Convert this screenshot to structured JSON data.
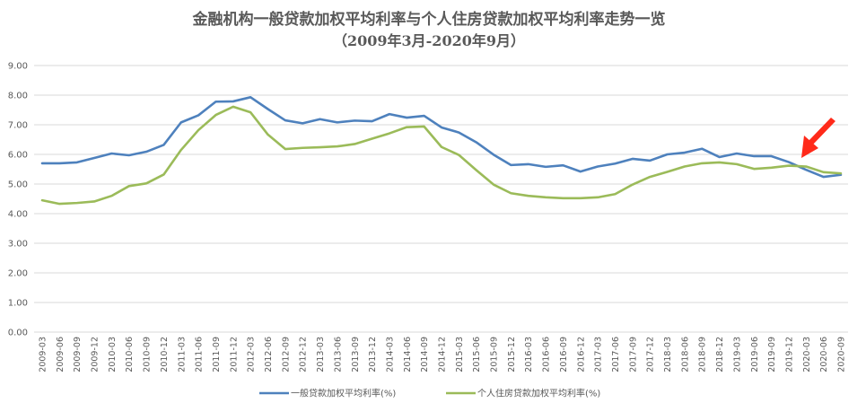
{
  "chart_data": {
    "type": "line",
    "title": "金融机构一般贷款加权平均利率与个人住房贷款加权平均利率走势一览",
    "subtitle": "（2009年3月-2020年9月）",
    "ylim": [
      0,
      9
    ],
    "yticks": [
      "0.00",
      "1.00",
      "2.00",
      "3.00",
      "4.00",
      "5.00",
      "6.00",
      "7.00",
      "8.00",
      "9.00"
    ],
    "grid": true,
    "legend": "bottom",
    "categories": [
      "2009-03",
      "2009-06",
      "2009-09",
      "2009-12",
      "2010-03",
      "2010-06",
      "2010-09",
      "2010-12",
      "2011-03",
      "2011-06",
      "2011-09",
      "2011-12",
      "2012-03",
      "2012-06",
      "2012-09",
      "2012-12",
      "2013-03",
      "2013-06",
      "2013-09",
      "2013-12",
      "2014-03",
      "2014-06",
      "2014-09",
      "2014-12",
      "2015-03",
      "2015-06",
      "2015-09",
      "2015-12",
      "2016-03",
      "2016-06",
      "2016-09",
      "2016-12",
      "2017-03",
      "2017-06",
      "2017-09",
      "2017-12",
      "2018-03",
      "2018-06",
      "2018-09",
      "2018-12",
      "2019-03",
      "2019-06",
      "2019-09",
      "2019-12",
      "2020-03",
      "2020-06",
      "2020-09"
    ],
    "series": [
      {
        "name": "一般贷款加权平均利率(%)",
        "color": "#4e81bd",
        "values": [
          5.7,
          5.7,
          5.73,
          5.88,
          6.03,
          5.97,
          6.09,
          6.32,
          7.08,
          7.32,
          7.78,
          7.79,
          7.93,
          7.53,
          7.15,
          7.05,
          7.19,
          7.08,
          7.14,
          7.12,
          7.36,
          7.24,
          7.3,
          6.91,
          6.74,
          6.41,
          5.99,
          5.64,
          5.67,
          5.58,
          5.63,
          5.42,
          5.59,
          5.69,
          5.85,
          5.79,
          6.0,
          6.06,
          6.19,
          5.91,
          6.03,
          5.94,
          5.94,
          5.74,
          5.48,
          5.24,
          5.31
        ]
      },
      {
        "name": "个人住房贷款加权平均利率(%)",
        "color": "#9bbb59",
        "values": [
          4.45,
          4.33,
          4.36,
          4.41,
          4.6,
          4.93,
          5.02,
          5.32,
          6.15,
          6.82,
          7.33,
          7.61,
          7.42,
          6.67,
          6.18,
          6.22,
          6.24,
          6.27,
          6.35,
          6.53,
          6.71,
          6.92,
          6.94,
          6.25,
          5.98,
          5.47,
          4.98,
          4.69,
          4.6,
          4.55,
          4.52,
          4.52,
          4.55,
          4.66,
          4.98,
          5.24,
          5.41,
          5.59,
          5.7,
          5.73,
          5.67,
          5.51,
          5.55,
          5.62,
          5.59,
          5.4,
          5.36
        ]
      }
    ],
    "annotation": {
      "arrow_color": "#ff2a1a"
    }
  }
}
